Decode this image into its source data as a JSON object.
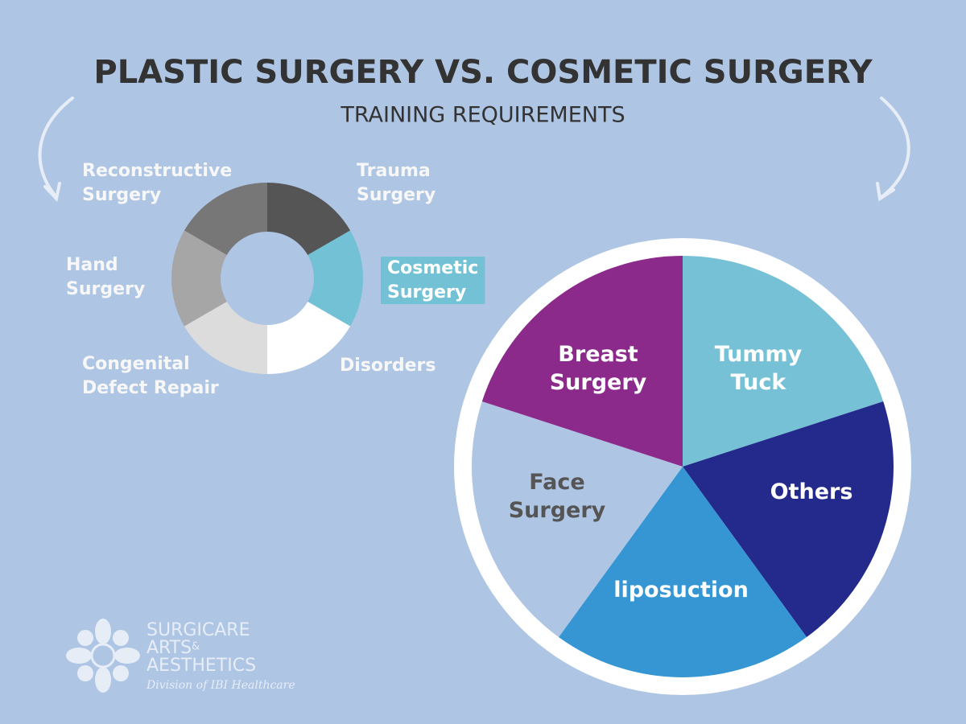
{
  "header": {
    "title": "PLASTIC SURGERY VS. COSMETIC SURGERY",
    "subtitle": "TRAINING REQUIREMENTS"
  },
  "chart_data": [
    {
      "type": "donut",
      "categories": [
        "Trauma Surgery",
        "Cosmetic Surgery",
        "Disorders",
        "Congenital Defect Repair",
        "Hand Surgery",
        "Reconstructive Surgery"
      ],
      "values": [
        1,
        1,
        1,
        1,
        1,
        1
      ],
      "colors": [
        "#555555",
        "#73c1d4",
        "#ffffff",
        "#dcdcdc",
        "#a6a6a6",
        "#777777"
      ],
      "highlighted": [
        false,
        true,
        false,
        false,
        false,
        false
      ],
      "highlight_color": "#73c1d4"
    },
    {
      "type": "pie",
      "categories": [
        "Tummy Tuck",
        "Others",
        "liposuction",
        "Face Surgery",
        "Breast Surgery"
      ],
      "values": [
        1,
        1,
        1,
        1,
        1
      ],
      "colors": [
        "#76c1d6",
        "#232a8c",
        "#3596d3",
        "#aec5e4",
        "#8c2a8c"
      ],
      "label_colors": [
        "#ffffff",
        "#ffffff",
        "#ffffff",
        "#555555",
        "#ffffff"
      ]
    }
  ],
  "logo": {
    "line1": "SURGICARE",
    "line2": "ARTS",
    "amp": "&",
    "line3": "AESTHETICS",
    "tagline": "Division of IBI Healthcare"
  }
}
